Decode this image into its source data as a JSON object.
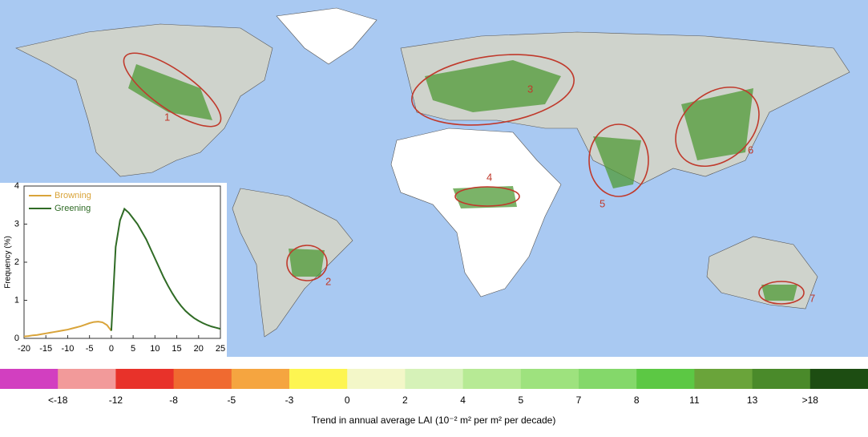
{
  "map": {
    "regions": [
      {
        "label": "1"
      },
      {
        "label": "2"
      },
      {
        "label": "3"
      },
      {
        "label": "4"
      },
      {
        "label": "5"
      },
      {
        "label": "6"
      },
      {
        "label": "7"
      }
    ]
  },
  "chart_data": {
    "type": "line",
    "ylabel": "Frequency (%)",
    "x": [
      -20,
      -19,
      -18,
      -17,
      -16,
      -15,
      -14,
      -13,
      -12,
      -11,
      -10,
      -9,
      -8,
      -7,
      -6,
      -5,
      -4,
      -3,
      -2,
      -1,
      0,
      1,
      2,
      3,
      4,
      5,
      6,
      7,
      8,
      9,
      10,
      11,
      12,
      13,
      14,
      15,
      16,
      17,
      18,
      19,
      20,
      21,
      22,
      23,
      24,
      25
    ],
    "series": [
      {
        "name": "Browning",
        "color": "#d9a43a",
        "values": [
          0.05,
          0.06,
          0.08,
          0.09,
          0.11,
          0.13,
          0.15,
          0.17,
          0.19,
          0.21,
          0.23,
          0.26,
          0.29,
          0.32,
          0.36,
          0.4,
          0.43,
          0.44,
          0.42,
          0.35,
          0.2,
          null,
          null,
          null,
          null,
          null,
          null,
          null,
          null,
          null,
          null,
          null,
          null,
          null,
          null,
          null,
          null,
          null,
          null,
          null,
          null,
          null,
          null,
          null,
          null,
          null
        ]
      },
      {
        "name": "Greening",
        "color": "#2f6b25",
        "values": [
          null,
          null,
          null,
          null,
          null,
          null,
          null,
          null,
          null,
          null,
          null,
          null,
          null,
          null,
          null,
          null,
          null,
          null,
          null,
          null,
          0.2,
          2.4,
          3.1,
          3.4,
          3.3,
          3.15,
          3.0,
          2.8,
          2.6,
          2.35,
          2.1,
          1.85,
          1.6,
          1.38,
          1.18,
          1.0,
          0.85,
          0.72,
          0.62,
          0.53,
          0.46,
          0.4,
          0.35,
          0.31,
          0.28,
          0.25
        ]
      }
    ],
    "xlim": [
      -20,
      25
    ],
    "xticks": [
      -20,
      -15,
      -10,
      -5,
      0,
      5,
      10,
      15,
      20,
      25
    ],
    "ylim": [
      0,
      4
    ],
    "yticks": [
      0,
      1,
      2,
      3,
      4
    ]
  },
  "colorbar": {
    "title": "Trend in annual average LAI (10⁻² m² per m² per decade)",
    "colors": [
      "#d23fc0",
      "#f29a9a",
      "#e8322a",
      "#f06a30",
      "#f5a540",
      "#fdf551",
      "#f3f7c8",
      "#d6f2b8",
      "#b7ea95",
      "#9ee27e",
      "#84d86a",
      "#5cc844",
      "#6aa43a",
      "#4a8a2a",
      "#1d4d12"
    ],
    "labels": [
      "<-18",
      "-12",
      "-8",
      "-5",
      "-3",
      "0",
      "2",
      "4",
      "5",
      "7",
      "8",
      "11",
      "13",
      ">18"
    ]
  }
}
